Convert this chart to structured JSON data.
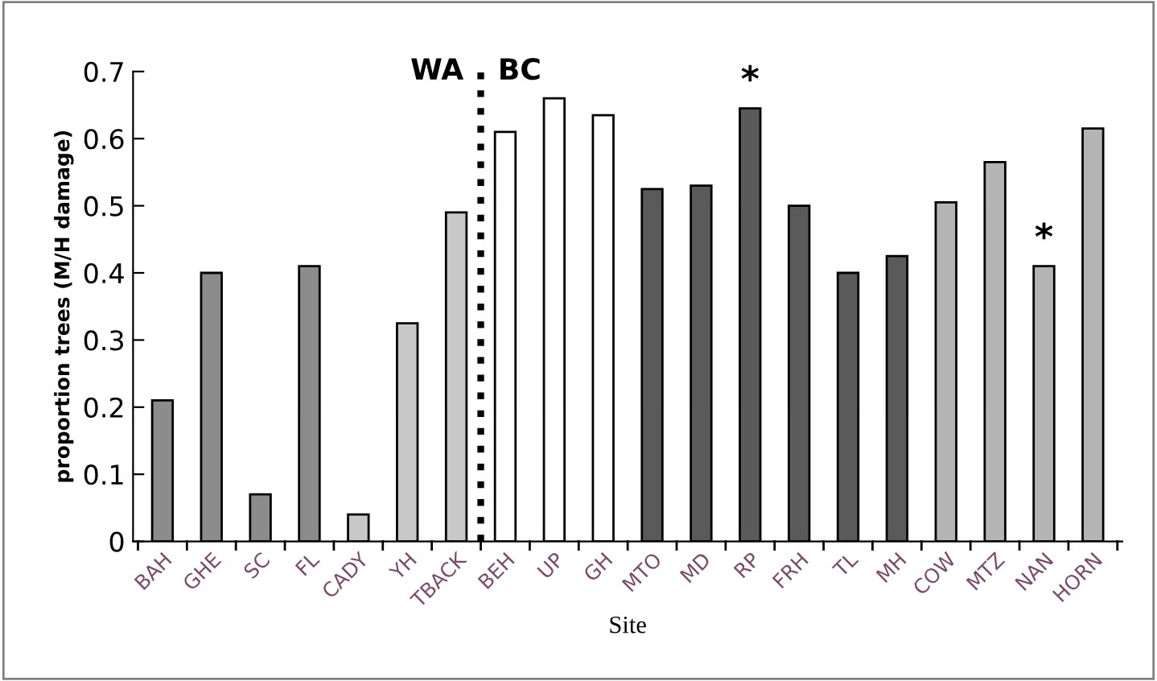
{
  "chart_data": {
    "type": "bar",
    "xlabel": "Site",
    "ylabel": "proportion trees (M/H damage)",
    "categories": [
      "BAH",
      "GHE",
      "SC",
      "FL",
      "CADY",
      "YH",
      "TBACK",
      "BEH",
      "UP",
      "GH",
      "MTO",
      "MD",
      "RP",
      "FRH",
      "TL",
      "MH",
      "COW",
      "MTZ",
      "NAN",
      "HORN"
    ],
    "values": [
      0.21,
      0.4,
      0.07,
      0.41,
      0.04,
      0.325,
      0.49,
      0.61,
      0.66,
      0.635,
      0.525,
      0.53,
      0.645,
      0.5,
      0.4,
      0.425,
      0.505,
      0.565,
      0.41,
      0.615
    ],
    "colors": [
      "#8c8c8c",
      "#8c8c8c",
      "#8c8c8c",
      "#8c8c8c",
      "#c8c8c8",
      "#c8c8c8",
      "#c8c8c8",
      "#ffffff",
      "#ffffff",
      "#ffffff",
      "#5a5a5a",
      "#5a5a5a",
      "#5a5a5a",
      "#5a5a5a",
      "#5a5a5a",
      "#5a5a5a",
      "#b4b4b4",
      "#b4b4b4",
      "#b4b4b4",
      "#b4b4b4"
    ],
    "ylim": [
      0,
      0.7
    ],
    "yticks": [
      0,
      0.1,
      0.2,
      0.3,
      0.4,
      0.5,
      0.6,
      0.7
    ],
    "grid": false,
    "annotations": [
      "WA",
      "BC",
      "*",
      "*"
    ]
  }
}
